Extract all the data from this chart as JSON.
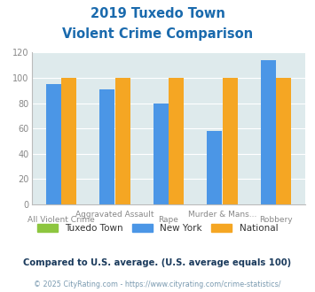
{
  "title_line1": "2019 Tuxedo Town",
  "title_line2": "Violent Crime Comparison",
  "categories": [
    "All Violent Crime",
    "Aggravated Assault",
    "Rape",
    "Murder & Mans...",
    "Robbery"
  ],
  "tuxedo_town": [
    0,
    0,
    0,
    0,
    0
  ],
  "new_york": [
    95,
    91,
    80,
    58,
    114
  ],
  "national": [
    100,
    100,
    100,
    100,
    100
  ],
  "color_tuxedo": "#8dc63f",
  "color_ny": "#4b96e6",
  "color_national": "#f5a623",
  "ylim": [
    0,
    120
  ],
  "yticks": [
    0,
    20,
    40,
    60,
    80,
    100,
    120
  ],
  "legend_labels": [
    "Tuxedo Town",
    "New York",
    "National"
  ],
  "footnote1": "Compared to U.S. average. (U.S. average equals 100)",
  "footnote2": "© 2025 CityRating.com - https://www.cityrating.com/crime-statistics/",
  "bg_color": "#deeaec",
  "title_color": "#1a6aad",
  "footnote1_color": "#1a3a5c",
  "footnote2_color": "#7a9ab0"
}
